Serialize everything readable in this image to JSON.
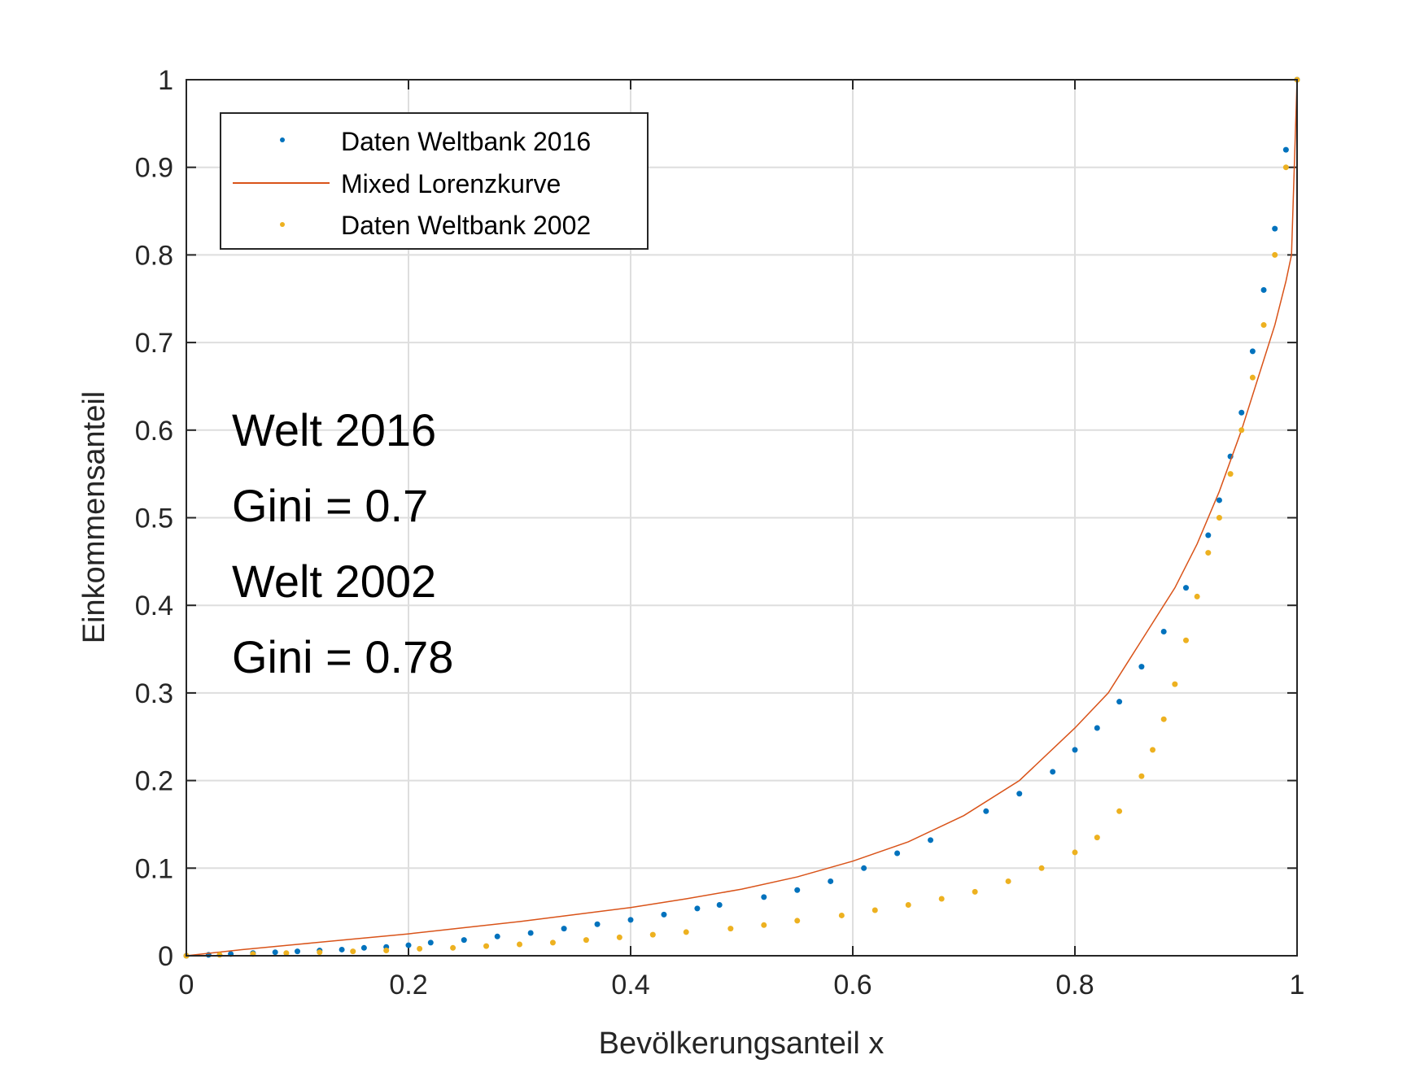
{
  "chart_data": {
    "type": "scatter",
    "xlabel": "Bevölkerungsanteil x",
    "ylabel": "Einkommensanteil",
    "xlim": [
      0,
      1
    ],
    "ylim": [
      0,
      1
    ],
    "xticks": [
      "0",
      "0.2",
      "0.4",
      "0.6",
      "0.8",
      "1"
    ],
    "yticks": [
      "0",
      "0.1",
      "0.2",
      "0.3",
      "0.4",
      "0.5",
      "0.6",
      "0.7",
      "0.8",
      "0.9",
      "1"
    ],
    "grid": true,
    "legend_position": "top-left",
    "annotations": [
      "Welt 2016",
      "Gini = 0.7",
      "Welt 2002",
      "Gini = 0.78"
    ],
    "series": [
      {
        "name": "Daten Weltbank 2016",
        "kind": "scatter",
        "color": "#0072BD",
        "x": [
          0,
          0.02,
          0.04,
          0.06,
          0.08,
          0.1,
          0.12,
          0.14,
          0.16,
          0.18,
          0.2,
          0.22,
          0.25,
          0.28,
          0.31,
          0.34,
          0.37,
          0.4,
          0.43,
          0.46,
          0.48,
          0.52,
          0.55,
          0.58,
          0.61,
          0.64,
          0.67,
          0.72,
          0.75,
          0.78,
          0.8,
          0.82,
          0.84,
          0.86,
          0.88,
          0.9,
          0.92,
          0.93,
          0.94,
          0.95,
          0.96,
          0.97,
          0.98,
          0.99,
          1.0
        ],
        "y": [
          0,
          0.001,
          0.002,
          0.003,
          0.004,
          0.005,
          0.006,
          0.007,
          0.009,
          0.01,
          0.012,
          0.015,
          0.018,
          0.022,
          0.026,
          0.031,
          0.036,
          0.041,
          0.047,
          0.054,
          0.058,
          0.067,
          0.075,
          0.085,
          0.1,
          0.117,
          0.132,
          0.165,
          0.185,
          0.21,
          0.235,
          0.26,
          0.29,
          0.33,
          0.37,
          0.42,
          0.48,
          0.52,
          0.57,
          0.62,
          0.69,
          0.76,
          0.83,
          0.92,
          1.0
        ]
      },
      {
        "name": "Mixed Lorenzkurve",
        "kind": "line",
        "color": "#D95319",
        "x": [
          0,
          0.05,
          0.1,
          0.15,
          0.2,
          0.25,
          0.3,
          0.35,
          0.4,
          0.45,
          0.5,
          0.55,
          0.6,
          0.65,
          0.7,
          0.75,
          0.8,
          0.83,
          0.85,
          0.87,
          0.89,
          0.91,
          0.93,
          0.95,
          0.96,
          0.97,
          0.98,
          0.99,
          0.995,
          1.0
        ],
        "y": [
          0,
          0.007,
          0.013,
          0.019,
          0.025,
          0.032,
          0.039,
          0.047,
          0.055,
          0.065,
          0.076,
          0.09,
          0.108,
          0.13,
          0.16,
          0.2,
          0.26,
          0.3,
          0.34,
          0.38,
          0.42,
          0.47,
          0.53,
          0.6,
          0.64,
          0.68,
          0.72,
          0.77,
          0.8,
          1.0
        ]
      },
      {
        "name": "Daten Weltbank 2002",
        "kind": "scatter",
        "color": "#EDB120",
        "x": [
          0,
          0.03,
          0.06,
          0.09,
          0.12,
          0.15,
          0.18,
          0.21,
          0.24,
          0.27,
          0.3,
          0.33,
          0.36,
          0.39,
          0.42,
          0.45,
          0.49,
          0.52,
          0.55,
          0.59,
          0.62,
          0.65,
          0.68,
          0.71,
          0.74,
          0.77,
          0.8,
          0.82,
          0.84,
          0.86,
          0.87,
          0.88,
          0.89,
          0.9,
          0.91,
          0.92,
          0.93,
          0.94,
          0.95,
          0.96,
          0.97,
          0.98,
          0.99,
          1.0
        ],
        "y": [
          0,
          0.001,
          0.002,
          0.003,
          0.004,
          0.005,
          0.006,
          0.008,
          0.009,
          0.011,
          0.013,
          0.015,
          0.018,
          0.021,
          0.024,
          0.027,
          0.031,
          0.035,
          0.04,
          0.046,
          0.052,
          0.058,
          0.065,
          0.073,
          0.085,
          0.1,
          0.118,
          0.135,
          0.165,
          0.205,
          0.235,
          0.27,
          0.31,
          0.36,
          0.41,
          0.46,
          0.5,
          0.55,
          0.6,
          0.66,
          0.72,
          0.8,
          0.9,
          1.0
        ]
      }
    ]
  }
}
